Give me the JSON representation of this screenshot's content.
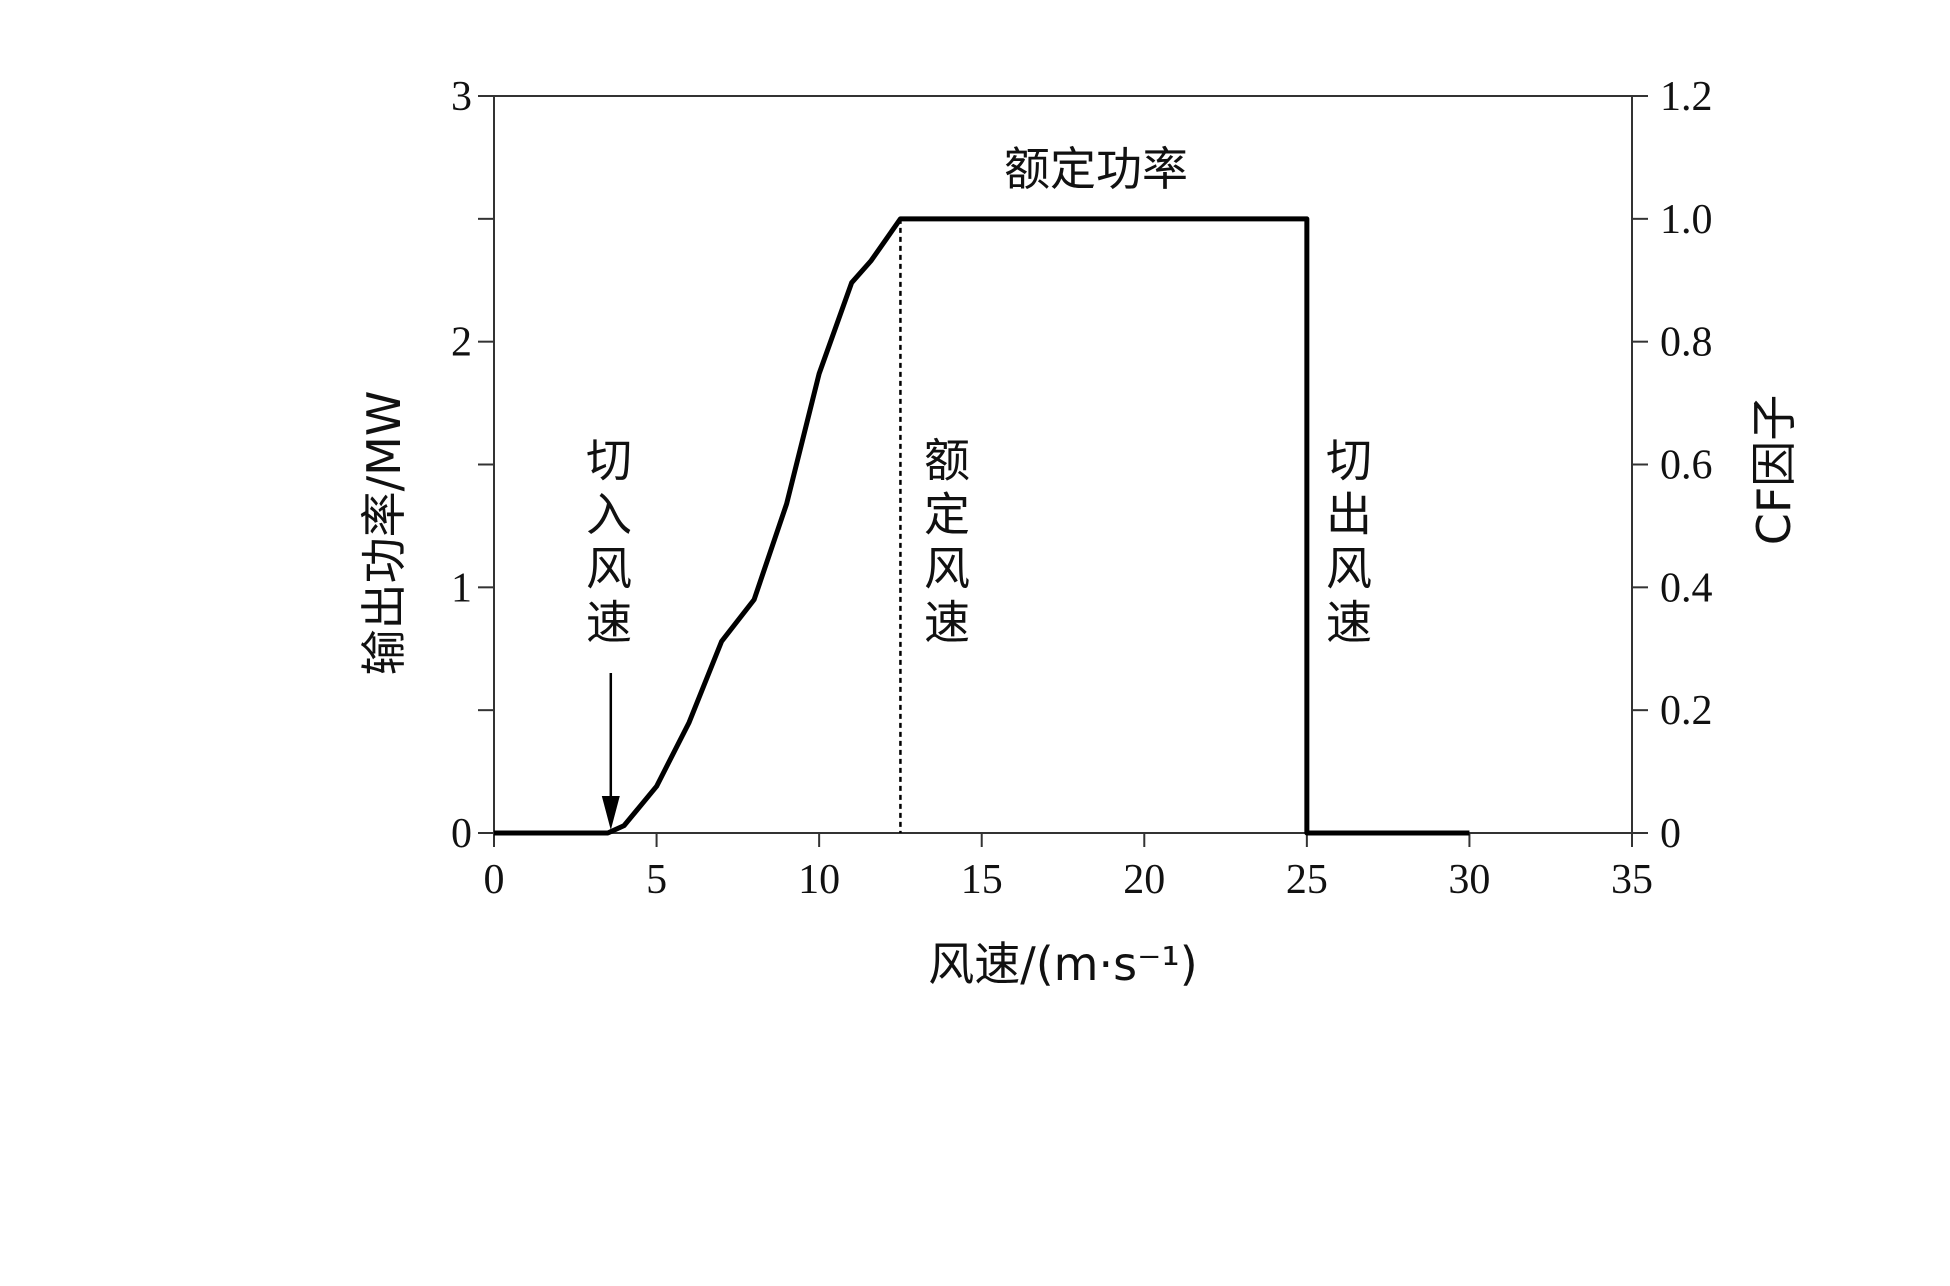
{
  "chart_data": {
    "type": "line",
    "title": "",
    "xlabel": "风速/(m·s⁻¹)",
    "ylabel": "输出功率/MW",
    "y2label": "CF因子",
    "xlim": [
      0,
      35
    ],
    "ylim": [
      0,
      3
    ],
    "y2lim": [
      0,
      1.2
    ],
    "xticks": [
      "0",
      "5",
      "10",
      "15",
      "20",
      "25",
      "30",
      "35"
    ],
    "yticks": [
      "0",
      "1",
      "2",
      "3"
    ],
    "y2ticks": [
      "0",
      "0.2",
      "0.4",
      "0.6",
      "0.8",
      "1.0",
      "1.2"
    ],
    "grid": false,
    "series": [
      {
        "name": "power curve",
        "x": [
          0,
          3.5,
          4,
          5,
          6,
          7,
          8,
          9,
          10,
          11,
          11.6,
          12.5,
          25,
          25,
          30
        ],
        "y": [
          0,
          0,
          0.03,
          0.19,
          0.45,
          0.78,
          0.95,
          1.34,
          1.87,
          2.24,
          2.33,
          2.5,
          2.5,
          0,
          0
        ]
      }
    ],
    "annotations": {
      "cut_in": {
        "text": "切入风速",
        "x": 3.5
      },
      "rated": {
        "text": "额定风速",
        "x": 12.5
      },
      "cut_out": {
        "text": "切出风速",
        "x": 25
      },
      "rated_power": {
        "text": "额定功率",
        "y": 2.5
      }
    }
  }
}
